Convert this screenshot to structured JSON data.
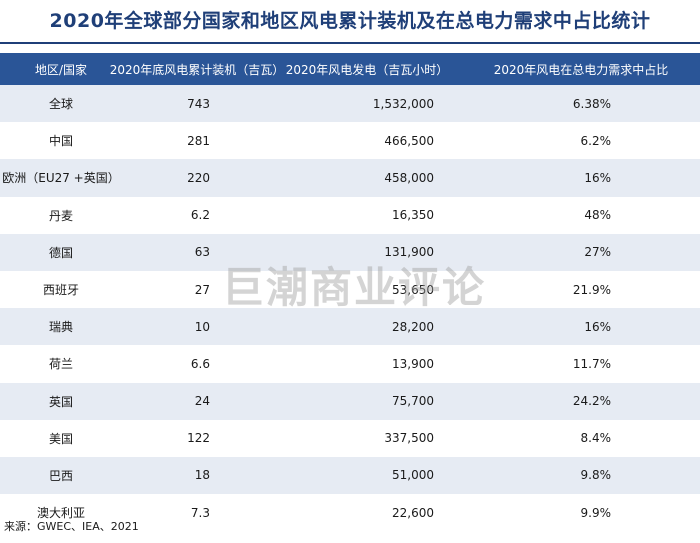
{
  "title": "2020年全球部分国家和地区风电累计装机及在总电力需求中占比统计",
  "watermark": "巨潮商业评论",
  "source": "来源：GWEC、IEA、2021",
  "chart_data": {
    "type": "table",
    "columns": [
      "地区/国家",
      "2020年底风电累计装机（吉瓦）",
      "2020年风电发电（吉瓦小时）",
      "2020年风电在总电力需求中占比"
    ],
    "rows": [
      {
        "region": "全球",
        "capacity": "743",
        "generation": "1,532,000",
        "share": "6.38%"
      },
      {
        "region": "中国",
        "capacity": "281",
        "generation": "466,500",
        "share": "6.2%"
      },
      {
        "region": "欧洲（EU27 +英国）",
        "capacity": "220",
        "generation": "458,000",
        "share": "16%"
      },
      {
        "region": "丹麦",
        "capacity": "6.2",
        "generation": "16,350",
        "share": "48%"
      },
      {
        "region": "德国",
        "capacity": "63",
        "generation": "131,900",
        "share": "27%"
      },
      {
        "region": "西班牙",
        "capacity": "27",
        "generation": "53,650",
        "share": "21.9%"
      },
      {
        "region": "瑞典",
        "capacity": "10",
        "generation": "28,200",
        "share": "16%"
      },
      {
        "region": "荷兰",
        "capacity": "6.6",
        "generation": "13,900",
        "share": "11.7%"
      },
      {
        "region": "英国",
        "capacity": "24",
        "generation": "75,700",
        "share": "24.2%"
      },
      {
        "region": "美国",
        "capacity": "122",
        "generation": "337,500",
        "share": "8.4%"
      },
      {
        "region": "巴西",
        "capacity": "18",
        "generation": "51,000",
        "share": "9.8%"
      },
      {
        "region": "澳大利亚",
        "capacity": "7.3",
        "generation": "22,600",
        "share": "9.9%"
      }
    ]
  }
}
